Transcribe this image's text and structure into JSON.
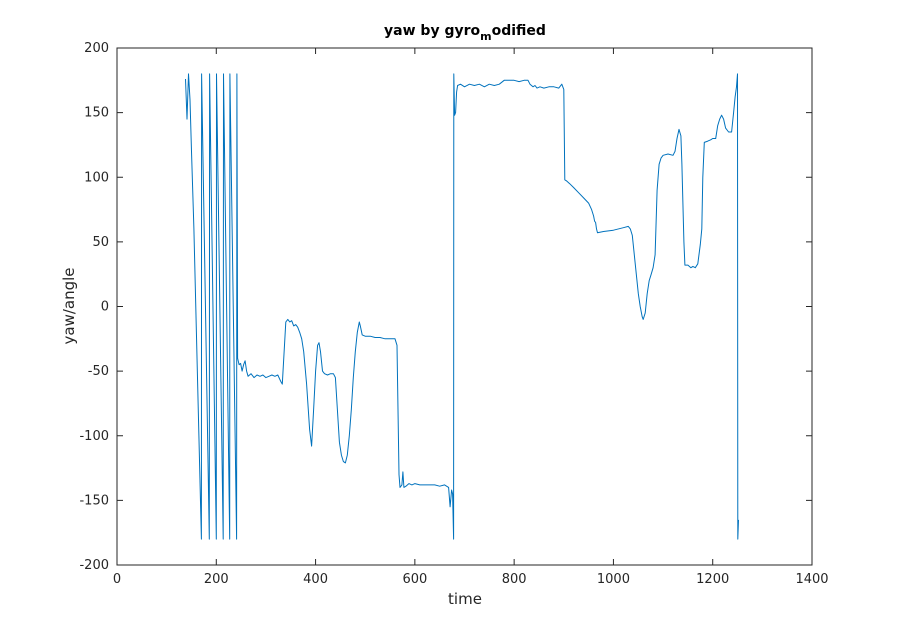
{
  "chart_data": {
    "type": "line",
    "title": "yaw by gyro",
    "title_subscript": "m",
    "title_suffix": "odified",
    "xlabel": "time",
    "ylabel": "yaw/angle",
    "xlim": [
      0,
      1400
    ],
    "ylim": [
      -200,
      200
    ],
    "x_ticks": [
      0,
      200,
      400,
      600,
      800,
      1000,
      1200,
      1400
    ],
    "y_ticks": [
      -200,
      -150,
      -100,
      -50,
      0,
      50,
      100,
      150,
      200
    ],
    "grid": false,
    "line_color": "#0072bd",
    "series": [
      {
        "points": [
          [
            138,
            176
          ],
          [
            141,
            145
          ],
          [
            144,
            180
          ],
          [
            147,
            160
          ],
          [
            150,
            120
          ],
          [
            155,
            60
          ],
          [
            160,
            -20
          ],
          [
            165,
            -100
          ],
          [
            170,
            -180
          ],
          [
            170.5,
            180
          ],
          [
            186,
            -180
          ],
          [
            186.5,
            180
          ],
          [
            200,
            -180
          ],
          [
            200.5,
            180
          ],
          [
            214,
            -180
          ],
          [
            214.5,
            180
          ],
          [
            227,
            -180
          ],
          [
            227.5,
            180
          ],
          [
            241,
            -180
          ],
          [
            241.5,
            180
          ],
          [
            243,
            -40
          ],
          [
            246,
            -45
          ],
          [
            249,
            -44
          ],
          [
            252,
            -50
          ],
          [
            255,
            -45
          ],
          [
            258,
            -42
          ],
          [
            261,
            -50
          ],
          [
            264,
            -54
          ],
          [
            270,
            -52
          ],
          [
            276,
            -55
          ],
          [
            282,
            -53
          ],
          [
            288,
            -54
          ],
          [
            294,
            -53
          ],
          [
            300,
            -55
          ],
          [
            306,
            -54
          ],
          [
            312,
            -53
          ],
          [
            318,
            -54
          ],
          [
            324,
            -53
          ],
          [
            330,
            -58
          ],
          [
            333,
            -60
          ],
          [
            340,
            -12
          ],
          [
            344,
            -10
          ],
          [
            348,
            -12
          ],
          [
            352,
            -11
          ],
          [
            356,
            -15
          ],
          [
            360,
            -14
          ],
          [
            364,
            -16
          ],
          [
            368,
            -20
          ],
          [
            372,
            -25
          ],
          [
            376,
            -35
          ],
          [
            382,
            -60
          ],
          [
            388,
            -95
          ],
          [
            392,
            -108
          ],
          [
            396,
            -80
          ],
          [
            400,
            -50
          ],
          [
            404,
            -30
          ],
          [
            407,
            -28
          ],
          [
            410,
            -35
          ],
          [
            414,
            -50
          ],
          [
            418,
            -52
          ],
          [
            424,
            -53
          ],
          [
            430,
            -52
          ],
          [
            436,
            -52
          ],
          [
            440,
            -55
          ],
          [
            444,
            -80
          ],
          [
            448,
            -105
          ],
          [
            452,
            -115
          ],
          [
            456,
            -120
          ],
          [
            460,
            -121
          ],
          [
            464,
            -115
          ],
          [
            468,
            -100
          ],
          [
            472,
            -80
          ],
          [
            476,
            -55
          ],
          [
            480,
            -35
          ],
          [
            484,
            -20
          ],
          [
            488,
            -12
          ],
          [
            490,
            -15
          ],
          [
            494,
            -22
          ],
          [
            500,
            -23
          ],
          [
            510,
            -23
          ],
          [
            520,
            -24
          ],
          [
            530,
            -24
          ],
          [
            540,
            -25
          ],
          [
            550,
            -25
          ],
          [
            560,
            -25
          ],
          [
            564,
            -30
          ],
          [
            566,
            -80
          ],
          [
            568,
            -130
          ],
          [
            570,
            -140
          ],
          [
            574,
            -138
          ],
          [
            576,
            -128
          ],
          [
            578,
            -140
          ],
          [
            582,
            -139
          ],
          [
            588,
            -137
          ],
          [
            594,
            -138
          ],
          [
            600,
            -137
          ],
          [
            610,
            -138
          ],
          [
            620,
            -138
          ],
          [
            630,
            -138
          ],
          [
            640,
            -138
          ],
          [
            650,
            -139
          ],
          [
            660,
            -138
          ],
          [
            668,
            -140
          ],
          [
            671,
            -155
          ],
          [
            674,
            -142
          ],
          [
            676,
            -145
          ],
          [
            678,
            -180
          ],
          [
            678.5,
            180
          ],
          [
            680,
            148
          ],
          [
            682,
            150
          ],
          [
            684,
            166
          ],
          [
            686,
            171
          ],
          [
            692,
            172
          ],
          [
            700,
            170
          ],
          [
            710,
            172
          ],
          [
            720,
            171
          ],
          [
            730,
            172
          ],
          [
            740,
            170
          ],
          [
            750,
            172
          ],
          [
            760,
            171
          ],
          [
            770,
            172
          ],
          [
            780,
            175
          ],
          [
            790,
            175
          ],
          [
            800,
            175
          ],
          [
            810,
            174
          ],
          [
            820,
            175
          ],
          [
            828,
            175
          ],
          [
            832,
            172
          ],
          [
            838,
            170
          ],
          [
            842,
            171
          ],
          [
            846,
            169
          ],
          [
            852,
            170
          ],
          [
            860,
            169
          ],
          [
            870,
            170
          ],
          [
            880,
            170
          ],
          [
            890,
            169
          ],
          [
            896,
            172
          ],
          [
            898,
            170
          ],
          [
            900,
            168
          ],
          [
            902,
            98
          ],
          [
            906,
            97
          ],
          [
            912,
            95
          ],
          [
            920,
            92
          ],
          [
            930,
            88
          ],
          [
            940,
            84
          ],
          [
            950,
            80
          ],
          [
            956,
            75
          ],
          [
            960,
            70
          ],
          [
            962,
            66
          ],
          [
            964,
            65
          ],
          [
            966,
            60
          ],
          [
            968,
            57
          ],
          [
            980,
            58
          ],
          [
            1000,
            59
          ],
          [
            1020,
            61
          ],
          [
            1030,
            62
          ],
          [
            1034,
            60
          ],
          [
            1038,
            55
          ],
          [
            1042,
            40
          ],
          [
            1046,
            25
          ],
          [
            1050,
            10
          ],
          [
            1054,
            0
          ],
          [
            1058,
            -8
          ],
          [
            1060,
            -10
          ],
          [
            1064,
            -5
          ],
          [
            1068,
            10
          ],
          [
            1072,
            20
          ],
          [
            1076,
            25
          ],
          [
            1080,
            30
          ],
          [
            1084,
            40
          ],
          [
            1088,
            90
          ],
          [
            1092,
            110
          ],
          [
            1096,
            115
          ],
          [
            1100,
            117
          ],
          [
            1110,
            118
          ],
          [
            1120,
            117
          ],
          [
            1124,
            120
          ],
          [
            1128,
            130
          ],
          [
            1132,
            137
          ],
          [
            1136,
            132
          ],
          [
            1138,
            110
          ],
          [
            1140,
            80
          ],
          [
            1142,
            50
          ],
          [
            1144,
            32
          ],
          [
            1150,
            32
          ],
          [
            1156,
            30
          ],
          [
            1160,
            31
          ],
          [
            1165,
            30
          ],
          [
            1170,
            33
          ],
          [
            1175,
            48
          ],
          [
            1178,
            60
          ],
          [
            1180,
            100
          ],
          [
            1183,
            127
          ],
          [
            1190,
            128
          ],
          [
            1196,
            129
          ],
          [
            1200,
            130
          ],
          [
            1206,
            130
          ],
          [
            1210,
            140
          ],
          [
            1214,
            145
          ],
          [
            1218,
            148
          ],
          [
            1222,
            145
          ],
          [
            1226,
            138
          ],
          [
            1232,
            135
          ],
          [
            1238,
            135
          ],
          [
            1242,
            150
          ],
          [
            1245,
            162
          ],
          [
            1248,
            170
          ],
          [
            1250,
            180
          ],
          [
            1250.5,
            -180
          ],
          [
            1252,
            -165
          ]
        ]
      }
    ]
  }
}
